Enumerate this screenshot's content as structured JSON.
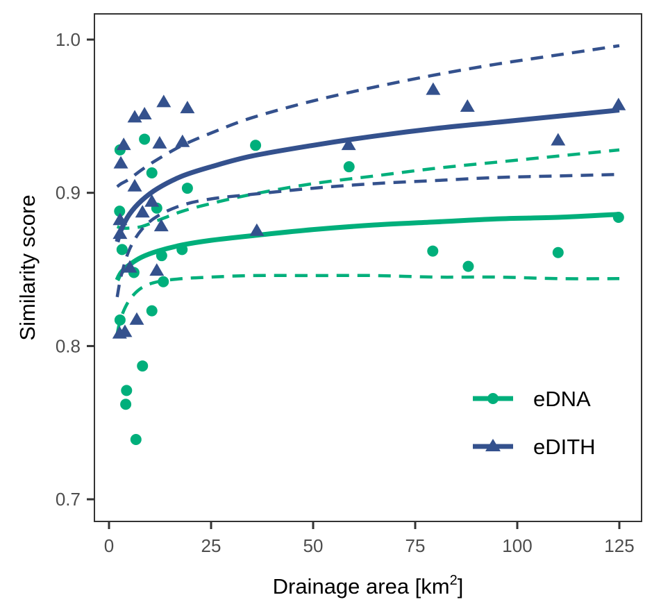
{
  "chart_data": {
    "type": "scatter",
    "title": "",
    "xlabel": "Drainage area [km",
    "xlabel_superscript": "2",
    "xlabel_suffix": "]",
    "ylabel": "Similarity score",
    "xlim": [
      -4,
      131
    ],
    "ylim": [
      0.686,
      1.021
    ],
    "x_ticks": [
      0,
      25,
      50,
      75,
      100,
      125
    ],
    "x_tick_labels": [
      "0",
      "25",
      "50",
      "75",
      "100",
      "125"
    ],
    "y_ticks": [
      0.7,
      0.8,
      0.9,
      1.0
    ],
    "y_tick_labels": [
      "0.7",
      "0.8",
      "0.9",
      "1.0"
    ],
    "grid": false,
    "legend_position": "bottom-right",
    "series": [
      {
        "name": "eDNA",
        "color": "#00AF7B",
        "marker": "circle",
        "points": [
          [
            2.7,
            0.928
          ],
          [
            8.7,
            0.935
          ],
          [
            10.5,
            0.913
          ],
          [
            2.6,
            0.888
          ],
          [
            11.7,
            0.89
          ],
          [
            19.2,
            0.903
          ],
          [
            3.2,
            0.863
          ],
          [
            6.1,
            0.848
          ],
          [
            12.9,
            0.859
          ],
          [
            17.9,
            0.863
          ],
          [
            13.3,
            0.842
          ],
          [
            2.7,
            0.817
          ],
          [
            10.5,
            0.823
          ],
          [
            8.2,
            0.787
          ],
          [
            4.3,
            0.771
          ],
          [
            4.1,
            0.762
          ],
          [
            6.6,
            0.739
          ],
          [
            35.9,
            0.931
          ],
          [
            58.8,
            0.917
          ],
          [
            79.3,
            0.862
          ],
          [
            88.0,
            0.852
          ],
          [
            110.0,
            0.861
          ],
          [
            124.8,
            0.884
          ]
        ],
        "fit": {
          "x": [
            2.0,
            3.0,
            5.0,
            8.0,
            12.0,
            18.0,
            25.0,
            35.0,
            50.0,
            65.0,
            80.0,
            95.0,
            110.0,
            125.0
          ],
          "y": [
            0.843,
            0.848,
            0.853,
            0.858,
            0.862,
            0.866,
            0.869,
            0.872,
            0.876,
            0.879,
            0.881,
            0.883,
            0.884,
            0.886
          ],
          "lower": [
            0.808,
            0.819,
            0.83,
            0.838,
            0.842,
            0.844,
            0.845,
            0.846,
            0.846,
            0.846,
            0.845,
            0.845,
            0.844,
            0.844
          ],
          "upper": [
            0.878,
            0.877,
            0.877,
            0.878,
            0.882,
            0.888,
            0.893,
            0.899,
            0.906,
            0.911,
            0.916,
            0.92,
            0.924,
            0.928
          ]
        }
      },
      {
        "name": "eDITH",
        "color": "#34518D",
        "marker": "triangle",
        "points": [
          [
            3.6,
            0.931
          ],
          [
            6.3,
            0.949
          ],
          [
            8.7,
            0.951
          ],
          [
            13.4,
            0.959
          ],
          [
            19.2,
            0.955
          ],
          [
            2.9,
            0.919
          ],
          [
            12.4,
            0.932
          ],
          [
            18.0,
            0.933
          ],
          [
            6.3,
            0.904
          ],
          [
            10.5,
            0.894
          ],
          [
            2.7,
            0.882
          ],
          [
            2.7,
            0.873
          ],
          [
            8.2,
            0.887
          ],
          [
            12.8,
            0.878
          ],
          [
            5.1,
            0.851
          ],
          [
            11.7,
            0.849
          ],
          [
            6.8,
            0.817
          ],
          [
            2.6,
            0.808
          ],
          [
            3.9,
            0.809
          ],
          [
            36.2,
            0.875
          ],
          [
            58.7,
            0.931
          ],
          [
            79.4,
            0.967
          ],
          [
            87.8,
            0.956
          ],
          [
            110.0,
            0.934
          ],
          [
            124.8,
            0.957
          ]
        ],
        "fit": {
          "x": [
            2.0,
            3.0,
            5.0,
            8.0,
            12.0,
            18.0,
            25.0,
            35.0,
            50.0,
            65.0,
            80.0,
            95.0,
            110.0,
            125.0
          ],
          "y": [
            0.868,
            0.876,
            0.886,
            0.895,
            0.903,
            0.911,
            0.917,
            0.924,
            0.931,
            0.937,
            0.942,
            0.946,
            0.95,
            0.954
          ],
          "lower": [
            0.832,
            0.846,
            0.863,
            0.876,
            0.885,
            0.892,
            0.896,
            0.899,
            0.903,
            0.906,
            0.908,
            0.91,
            0.911,
            0.912
          ],
          "upper": [
            0.904,
            0.906,
            0.909,
            0.915,
            0.922,
            0.931,
            0.939,
            0.949,
            0.96,
            0.969,
            0.977,
            0.984,
            0.99,
            0.996
          ]
        }
      }
    ]
  }
}
